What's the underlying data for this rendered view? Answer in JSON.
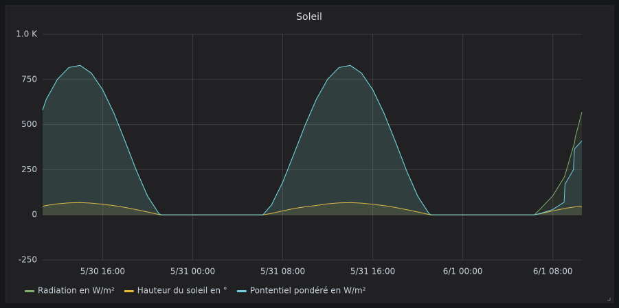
{
  "chart_data": {
    "type": "line",
    "title": "Soleil",
    "x": [
      "5/30 10:40",
      "5/30 11:00",
      "5/30 12:00",
      "5/30 13:00",
      "5/30 14:00",
      "5/30 15:00",
      "5/30 16:00",
      "5/30 17:00",
      "5/30 18:00",
      "5/30 19:00",
      "5/30 20:00",
      "5/30 21:00",
      "5/30 21:12",
      "5/31 06:14",
      "5/31 07:00",
      "5/31 08:00",
      "5/31 09:00",
      "5/31 10:00",
      "5/31 11:00",
      "5/31 12:00",
      "5/31 13:00",
      "5/31 14:00",
      "5/31 15:00",
      "5/31 16:00",
      "5/31 17:00",
      "5/31 18:00",
      "5/31 19:00",
      "5/31 20:00",
      "5/31 21:00",
      "5/31 21:12",
      "6/1 06:21",
      "6/1 07:00",
      "6/1 08:00",
      "6/1 09:00",
      "6/1 09:05",
      "6/1 09:50",
      "6/1 09:55",
      "6/1 10:00",
      "6/1 10:35"
    ],
    "series": [
      {
        "name": "Radiation en W/m²",
        "color": "#7eb26d",
        "values": [
          580,
          641,
          752,
          816,
          828,
          785,
          693,
          563,
          408,
          246,
          103,
          7,
          0,
          0,
          54,
          181,
          338,
          498,
          641,
          752,
          816,
          828,
          785,
          693,
          563,
          408,
          246,
          103,
          7,
          0,
          0,
          40,
          106,
          208,
          220,
          380,
          395,
          430,
          570
        ]
      },
      {
        "name": "Hauteur du soleil en °",
        "color": "#eab839",
        "values": [
          48,
          52,
          61,
          66,
          68,
          65,
          59,
          51,
          41,
          29,
          16,
          2,
          0,
          0,
          8,
          22,
          35,
          45,
          52,
          61,
          66,
          68,
          65,
          59,
          51,
          41,
          29,
          16,
          2,
          0,
          0,
          8,
          22,
          35,
          36,
          43,
          44,
          44,
          47
        ]
      },
      {
        "name": "Pontentiel pondéré en W/m²",
        "color": "#6ed0e0",
        "values": [
          580,
          641,
          752,
          816,
          828,
          785,
          693,
          563,
          408,
          246,
          103,
          7,
          0,
          0,
          54,
          181,
          338,
          498,
          641,
          752,
          816,
          828,
          785,
          693,
          563,
          408,
          246,
          103,
          7,
          0,
          0,
          10,
          30,
          70,
          170,
          250,
          360,
          370,
          410
        ]
      }
    ],
    "xlim": [
      "5/30 10:40",
      "6/1 10:35"
    ],
    "xticks": [
      "5/30 16:00",
      "5/31 00:00",
      "5/31 08:00",
      "5/31 16:00",
      "6/1 00:00",
      "6/1 08:00"
    ],
    "ylim": [
      -250,
      1000
    ],
    "yticks": [
      -250,
      0,
      250,
      500,
      750,
      {
        "value": 1000,
        "label": "1.0 K"
      }
    ],
    "grid": true,
    "legend": "bottom"
  }
}
